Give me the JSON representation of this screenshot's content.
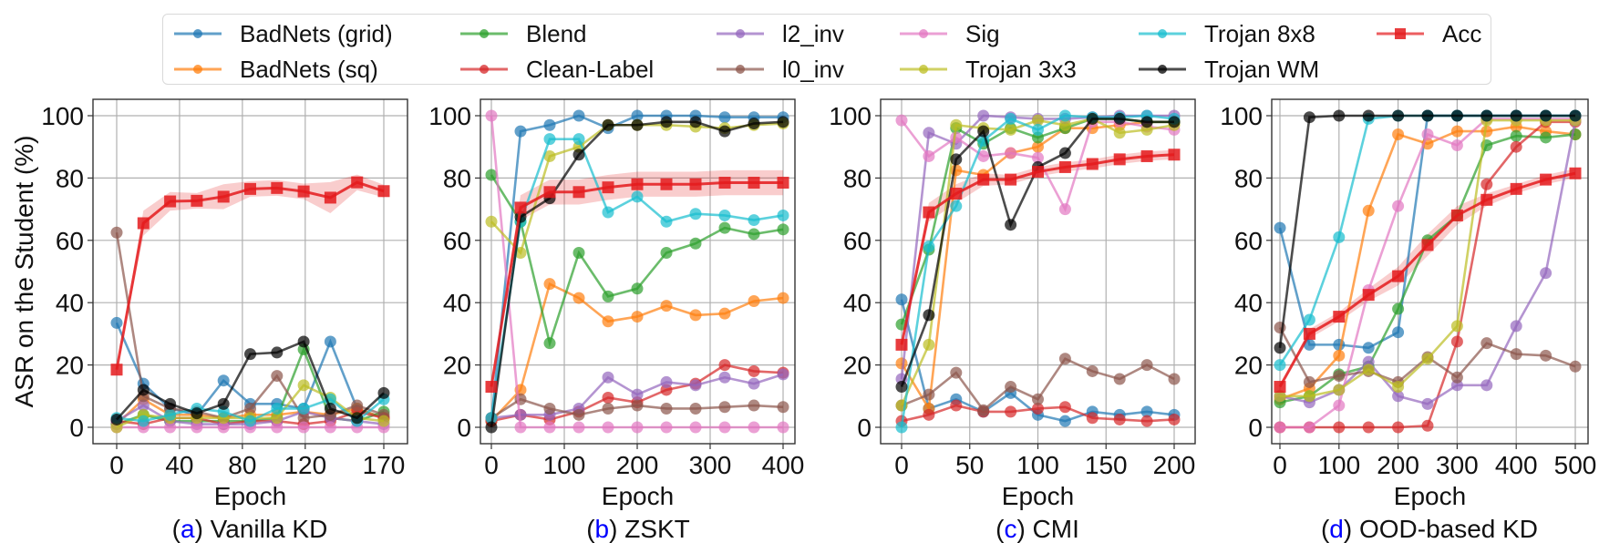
{
  "legend": {
    "items": [
      {
        "name": "BadNets (grid)",
        "color": "#1f77b4",
        "marker": "circle"
      },
      {
        "name": "BadNets (sq)",
        "color": "#ff7f0e",
        "marker": "circle"
      },
      {
        "name": "Blend",
        "color": "#2ca02c",
        "marker": "circle"
      },
      {
        "name": "Clean-Label",
        "color": "#d62728",
        "marker": "circle"
      },
      {
        "name": "l2_inv",
        "color": "#9467bd",
        "marker": "circle"
      },
      {
        "name": "l0_inv",
        "color": "#8c564b",
        "marker": "circle"
      },
      {
        "name": "Sig",
        "color": "#e377c2",
        "marker": "circle"
      },
      {
        "name": "Trojan 3x3",
        "color": "#bcbd22",
        "marker": "circle"
      },
      {
        "name": "Trojan 8x8",
        "color": "#17becf",
        "marker": "circle"
      },
      {
        "name": "Trojan WM",
        "color": "#000000",
        "marker": "circle"
      },
      {
        "name": "Acc",
        "color": "#e41a1c",
        "marker": "square"
      }
    ]
  },
  "ylabel": "ASR on the Student (%)",
  "chart_data": [
    {
      "type": "line",
      "caption_prefix": "(",
      "caption_letter": "a",
      "caption_suffix": ") Vanilla KD",
      "caption_letter_color": "#0000ff",
      "xlabel": "Epoch",
      "ylabel": "ASR on the Student (%)",
      "xlim": [
        -15,
        185
      ],
      "ylim": [
        -5,
        105
      ],
      "xticks": [
        "0",
        "40",
        "80",
        "120",
        "170"
      ],
      "yticks": [
        "0",
        "20",
        "40",
        "60",
        "80",
        "100"
      ],
      "grid": true,
      "x": [
        0,
        17,
        34,
        51,
        68,
        85,
        102,
        119,
        136,
        153,
        170
      ],
      "series": [
        {
          "name": "BadNets (grid)",
          "values": [
            33.5,
            14,
            6,
            4,
            15,
            7.5,
            7.5,
            6,
            27.5,
            6,
            3
          ]
        },
        {
          "name": "BadNets (sq)",
          "values": [
            1,
            9,
            4,
            4,
            3,
            4,
            4,
            5,
            4,
            6,
            3
          ]
        },
        {
          "name": "Blend",
          "values": [
            1,
            4,
            2,
            2,
            2,
            2,
            3,
            25,
            3,
            2,
            5
          ]
        },
        {
          "name": "Clean-Label",
          "values": [
            2,
            1,
            3,
            3,
            1,
            2,
            2,
            1,
            2,
            5,
            3
          ]
        },
        {
          "name": "l2_inv",
          "values": [
            2,
            7,
            2,
            1,
            1,
            1,
            2,
            5,
            3,
            2,
            1
          ]
        },
        {
          "name": "l0_inv",
          "values": [
            62.5,
            10,
            6,
            5,
            3,
            6,
            16.5,
            3,
            4,
            7,
            4
          ]
        },
        {
          "name": "Sig",
          "values": [
            0,
            0,
            0,
            0,
            0,
            0,
            0,
            0,
            0,
            0,
            0
          ]
        },
        {
          "name": "Trojan 3x3",
          "values": [
            0,
            4,
            3,
            3,
            3,
            3,
            3,
            13.5,
            9.5,
            3,
            2
          ]
        },
        {
          "name": "Trojan 8x8",
          "values": [
            3,
            2,
            4,
            6,
            5,
            2,
            6,
            6,
            9,
            2,
            9
          ]
        },
        {
          "name": "Trojan WM",
          "values": [
            2.5,
            12,
            7.5,
            4.5,
            7.5,
            23.5,
            24,
            27.5,
            6,
            3,
            11
          ]
        },
        {
          "name": "Acc",
          "values": [
            18.5,
            65.5,
            72.5,
            72.7,
            74,
            76.5,
            76.8,
            75.7,
            73.7,
            78.6,
            75.8
          ],
          "std": [
            0,
            4,
            3,
            2.5,
            4,
            2.5,
            2.5,
            2.5,
            5,
            2.5,
            2
          ]
        }
      ]
    },
    {
      "type": "line",
      "caption_prefix": "(",
      "caption_letter": "b",
      "caption_suffix": ") ZSKT",
      "caption_letter_color": "#0000ff",
      "xlabel": "Epoch",
      "xlim": [
        -15,
        416
      ],
      "ylim": [
        -5,
        105
      ],
      "xticks": [
        "0",
        "100",
        "200",
        "300",
        "400"
      ],
      "yticks": [
        "0",
        "20",
        "40",
        "60",
        "80",
        "100"
      ],
      "grid": true,
      "x": [
        0,
        40,
        80,
        120,
        160,
        200,
        240,
        280,
        320,
        360,
        400
      ],
      "series": [
        {
          "name": "BadNets (grid)",
          "values": [
            2,
            95,
            97,
            100,
            96,
            100,
            100,
            100,
            99.5,
            99.5,
            99.5
          ]
        },
        {
          "name": "BadNets (sq)",
          "values": [
            2,
            12,
            46,
            41.5,
            34,
            35.5,
            39,
            36,
            36.5,
            40.5,
            41.5
          ]
        },
        {
          "name": "Blend",
          "values": [
            81,
            66,
            27,
            56,
            42,
            44.5,
            56,
            59,
            64,
            62,
            63.5
          ]
        },
        {
          "name": "Clean-Label",
          "values": [
            2,
            4,
            2.5,
            5,
            9.5,
            8,
            12,
            14,
            20,
            18,
            17.5
          ]
        },
        {
          "name": "l2_inv",
          "values": [
            3,
            4,
            4,
            6,
            16,
            10.5,
            14.5,
            13.5,
            16,
            14,
            17
          ]
        },
        {
          "name": "l0_inv",
          "values": [
            3,
            9,
            6,
            4,
            6,
            7,
            6,
            6,
            6.5,
            7,
            6.5
          ]
        },
        {
          "name": "Sig",
          "values": [
            100,
            0,
            0,
            0,
            0,
            0,
            0,
            0,
            0,
            0,
            0
          ]
        },
        {
          "name": "Trojan 3x3",
          "values": [
            66,
            56,
            87,
            90,
            97,
            97,
            97,
            96.5,
            96,
            97,
            97.5
          ]
        },
        {
          "name": "Trojan 8x8",
          "values": [
            3,
            66,
            92.5,
            92.5,
            69,
            74,
            66,
            68.5,
            68,
            66.5,
            68
          ]
        },
        {
          "name": "Trojan WM",
          "values": [
            0,
            67.5,
            73.5,
            87.5,
            97,
            97,
            98,
            98,
            95,
            97.5,
            98
          ]
        },
        {
          "name": "Acc",
          "values": [
            13,
            70.5,
            75.5,
            75.5,
            77,
            78,
            78,
            78,
            78.5,
            78.5,
            78.5
          ],
          "std": [
            0,
            4,
            4,
            4,
            4,
            4,
            4,
            4,
            4,
            4,
            4
          ]
        }
      ]
    },
    {
      "type": "line",
      "caption_prefix": "(",
      "caption_letter": "c",
      "caption_suffix": ") CMI",
      "caption_letter_color": "#0000ff",
      "xlabel": "Epoch",
      "xlim": [
        -8,
        215
      ],
      "ylim": [
        -5,
        105
      ],
      "xticks": [
        "0",
        "50",
        "100",
        "150",
        "200"
      ],
      "yticks": [
        "0",
        "20",
        "40",
        "60",
        "80",
        "100"
      ],
      "grid": true,
      "x": [
        0,
        20,
        40,
        60,
        80,
        100,
        120,
        140,
        160,
        180,
        200
      ],
      "series": [
        {
          "name": "BadNets (grid)",
          "values": [
            41,
            6,
            9,
            5,
            11,
            4,
            2,
            5,
            4,
            5,
            4
          ]
        },
        {
          "name": "BadNets (sq)",
          "values": [
            20.5,
            6,
            82.5,
            81,
            88,
            90,
            96,
            96,
            97,
            98,
            98
          ]
        },
        {
          "name": "Blend",
          "values": [
            33,
            57,
            96,
            91,
            96,
            93,
            96,
            99,
            99,
            98,
            98
          ]
        },
        {
          "name": "Clean-Label",
          "values": [
            2,
            4,
            7,
            5,
            5,
            6,
            6.5,
            3,
            2.5,
            2,
            2.5
          ]
        },
        {
          "name": "l2_inv",
          "values": [
            15.5,
            94.5,
            91,
            100,
            99.5,
            99,
            99,
            99.5,
            100,
            100,
            100
          ]
        },
        {
          "name": "l0_inv",
          "values": [
            7,
            10.5,
            17.5,
            5.5,
            13,
            9,
            22,
            18,
            15.5,
            20,
            15.5
          ]
        },
        {
          "name": "Sig",
          "values": [
            98.5,
            87,
            93,
            87,
            88,
            86.5,
            70,
            98,
            98,
            96.5,
            95.5
          ]
        },
        {
          "name": "Trojan 3x3",
          "values": [
            7,
            26.5,
            97,
            96,
            95.5,
            98.5,
            97,
            99,
            94.5,
            95.5,
            97
          ]
        },
        {
          "name": "Trojan 8x8",
          "values": [
            0,
            58,
            71,
            92,
            99,
            95.5,
            100,
            99.5,
            99.5,
            100,
            99
          ]
        },
        {
          "name": "Trojan WM",
          "values": [
            13,
            36,
            86,
            95,
            65,
            83.5,
            88,
            99,
            99,
            98,
            98
          ]
        },
        {
          "name": "Acc",
          "values": [
            26.5,
            69,
            75,
            79.5,
            79.5,
            82,
            83.5,
            84.5,
            86,
            87,
            87.5
          ],
          "std": [
            0,
            3,
            3,
            2,
            1.5,
            1.5,
            1.5,
            1.5,
            1.5,
            1.5,
            1.5
          ]
        }
      ]
    },
    {
      "type": "line",
      "caption_prefix": "(",
      "caption_letter": "d",
      "caption_suffix": ") OOD-based KD",
      "caption_letter_color": "#0000ff",
      "xlabel": "Epoch",
      "xlim": [
        -15,
        520
      ],
      "ylim": [
        -5,
        105
      ],
      "xticks": [
        "0",
        "100",
        "200",
        "300",
        "400",
        "500"
      ],
      "yticks": [
        "0",
        "20",
        "40",
        "60",
        "80",
        "100"
      ],
      "grid": true,
      "x": [
        0,
        50,
        100,
        150,
        200,
        250,
        300,
        350,
        400,
        450,
        500
      ],
      "series": [
        {
          "name": "BadNets (grid)",
          "values": [
            64,
            26.5,
            26.5,
            25.5,
            30.5,
            100,
            100,
            100,
            100,
            100,
            100
          ]
        },
        {
          "name": "BadNets (sq)",
          "values": [
            9,
            12.5,
            23,
            69.5,
            94,
            91,
            95,
            95,
            96.5,
            95,
            94
          ]
        },
        {
          "name": "Blend",
          "values": [
            8,
            10,
            17,
            19.5,
            38,
            60,
            68,
            90.5,
            93.5,
            93,
            94
          ]
        },
        {
          "name": "Clean-Label",
          "values": [
            0,
            0,
            0,
            0,
            0,
            0.5,
            27.5,
            78,
            90,
            98,
            98
          ]
        },
        {
          "name": "l2_inv",
          "values": [
            10,
            8,
            12,
            21,
            10,
            7.5,
            13.5,
            13.5,
            32.5,
            49.5,
            98.5
          ]
        },
        {
          "name": "l0_inv",
          "values": [
            32,
            14.5,
            16.5,
            18,
            14.5,
            22.5,
            16,
            27,
            23.5,
            23,
            19.5
          ]
        },
        {
          "name": "Sig",
          "values": [
            0,
            0,
            7,
            44,
            71,
            94,
            90.5,
            99,
            99,
            99,
            99
          ]
        },
        {
          "name": "Trojan 3x3",
          "values": [
            10,
            10,
            12,
            18.5,
            13,
            22,
            32.5,
            98.5,
            98.5,
            98.5,
            98.5
          ]
        },
        {
          "name": "Trojan 8x8",
          "values": [
            20,
            34.5,
            61,
            99,
            100,
            100,
            100,
            100,
            100,
            100,
            100
          ]
        },
        {
          "name": "Trojan WM",
          "values": [
            25.5,
            99.5,
            100,
            100,
            100,
            100,
            100,
            100,
            100,
            100,
            100
          ]
        },
        {
          "name": "Acc",
          "values": [
            13,
            30,
            35.5,
            42.5,
            48.5,
            58.5,
            68,
            73,
            76.5,
            79.5,
            81.5
          ],
          "std": [
            0,
            1.5,
            1.5,
            2,
            3,
            3.5,
            3,
            2,
            1.5,
            1.5,
            1.5
          ]
        }
      ]
    }
  ]
}
